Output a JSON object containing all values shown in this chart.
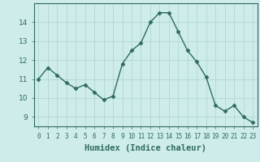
{
  "x": [
    0,
    1,
    2,
    3,
    4,
    5,
    6,
    7,
    8,
    9,
    10,
    11,
    12,
    13,
    14,
    15,
    16,
    17,
    18,
    19,
    20,
    21,
    22,
    23
  ],
  "y": [
    11.0,
    11.6,
    11.2,
    10.8,
    10.5,
    10.7,
    10.3,
    9.9,
    10.1,
    11.8,
    12.5,
    12.9,
    14.0,
    14.5,
    14.5,
    13.5,
    12.5,
    11.9,
    11.1,
    9.6,
    9.3,
    9.6,
    9.0,
    8.7
  ],
  "xlabel": "Humidex (Indice chaleur)",
  "line_color": "#2e6b5e",
  "marker": "D",
  "marker_size": 2.5,
  "bg_color": "#ceecea",
  "grid_color": "#b0d8d4",
  "xlim": [
    -0.5,
    23.5
  ],
  "ylim": [
    8.5,
    15.0
  ],
  "yticks": [
    9,
    10,
    11,
    12,
    13,
    14
  ],
  "xtick_labels": [
    "0",
    "1",
    "2",
    "3",
    "4",
    "5",
    "6",
    "7",
    "8",
    "9",
    "10",
    "11",
    "12",
    "13",
    "14",
    "15",
    "16",
    "17",
    "18",
    "19",
    "20",
    "21",
    "22",
    "23"
  ]
}
